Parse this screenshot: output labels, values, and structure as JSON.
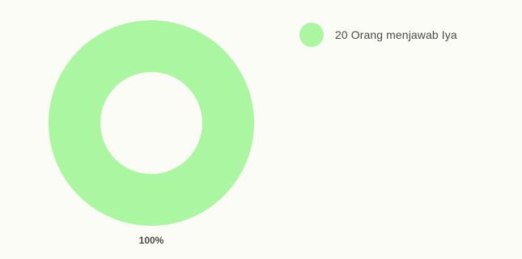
{
  "chart_data": {
    "type": "pie",
    "variant": "donut",
    "categories": [
      "20 Orang menjawab Iya"
    ],
    "values": [
      20
    ],
    "data_labels": [
      "100%"
    ],
    "colors": [
      "#aaf6a1"
    ],
    "legend_position": "top-right"
  },
  "background_color": "#fcfcf6"
}
